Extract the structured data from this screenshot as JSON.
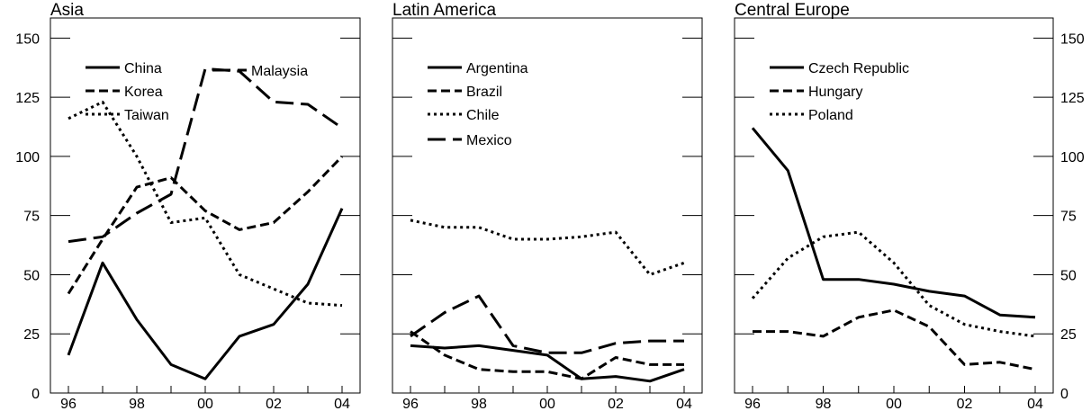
{
  "chart_data": [
    {
      "type": "line",
      "title": "Asia",
      "x": [
        "96",
        "97",
        "98",
        "99",
        "00",
        "01",
        "02",
        "03",
        "04"
      ],
      "x_tick_labels": [
        "96",
        "98",
        "00",
        "02",
        "04"
      ],
      "ylim": [
        0,
        160
      ],
      "y_ticks": [
        0,
        25,
        50,
        75,
        100,
        125,
        150
      ],
      "series": [
        {
          "name": "China",
          "style": "solid",
          "values": [
            16,
            55,
            31,
            12,
            6,
            24,
            29,
            46,
            78
          ]
        },
        {
          "name": "Korea",
          "style": "dashed",
          "values": [
            42,
            65,
            87,
            91,
            77,
            69,
            72,
            85,
            100
          ]
        },
        {
          "name": "Taiwan",
          "style": "dotted",
          "values": [
            116,
            123,
            100,
            72,
            74,
            50,
            44,
            38,
            37
          ]
        },
        {
          "name": "Malaysia",
          "style": "long-dash",
          "values": [
            64,
            66,
            76,
            84,
            137,
            136,
            123,
            122,
            112
          ]
        }
      ]
    },
    {
      "type": "line",
      "title": "Latin America",
      "x": [
        "96",
        "97",
        "98",
        "99",
        "00",
        "01",
        "02",
        "03",
        "04"
      ],
      "x_tick_labels": [
        "96",
        "98",
        "00",
        "02",
        "04"
      ],
      "ylim": [
        0,
        160
      ],
      "series": [
        {
          "name": "Argentina",
          "style": "solid",
          "values": [
            20,
            19,
            20,
            18,
            16,
            6,
            7,
            5,
            10
          ]
        },
        {
          "name": "Brazil",
          "style": "dashed",
          "values": [
            26,
            16,
            10,
            9,
            9,
            6,
            15,
            12,
            12
          ]
        },
        {
          "name": "Chile",
          "style": "dotted",
          "values": [
            73,
            70,
            70,
            65,
            65,
            66,
            68,
            50,
            55
          ]
        },
        {
          "name": "Mexico",
          "style": "long-dash",
          "values": [
            24,
            34,
            41,
            20,
            17,
            17,
            21,
            22,
            22
          ]
        }
      ]
    },
    {
      "type": "line",
      "title": "Central Europe",
      "x": [
        "96",
        "97",
        "98",
        "99",
        "00",
        "01",
        "02",
        "03",
        "04"
      ],
      "x_tick_labels": [
        "96",
        "98",
        "00",
        "02",
        "04"
      ],
      "ylim": [
        0,
        160
      ],
      "y_ticks": [
        0,
        25,
        50,
        75,
        100,
        125,
        150
      ],
      "series": [
        {
          "name": "Czech Republic",
          "style": "solid",
          "values": [
            112,
            94,
            48,
            48,
            46,
            43,
            41,
            33,
            32
          ]
        },
        {
          "name": "Hungary",
          "style": "dashed",
          "values": [
            26,
            26,
            24,
            32,
            35,
            28,
            12,
            13,
            10
          ]
        },
        {
          "name": "Poland",
          "style": "dotted",
          "values": [
            40,
            57,
            66,
            68,
            55,
            37,
            29,
            26,
            24
          ]
        }
      ]
    }
  ]
}
